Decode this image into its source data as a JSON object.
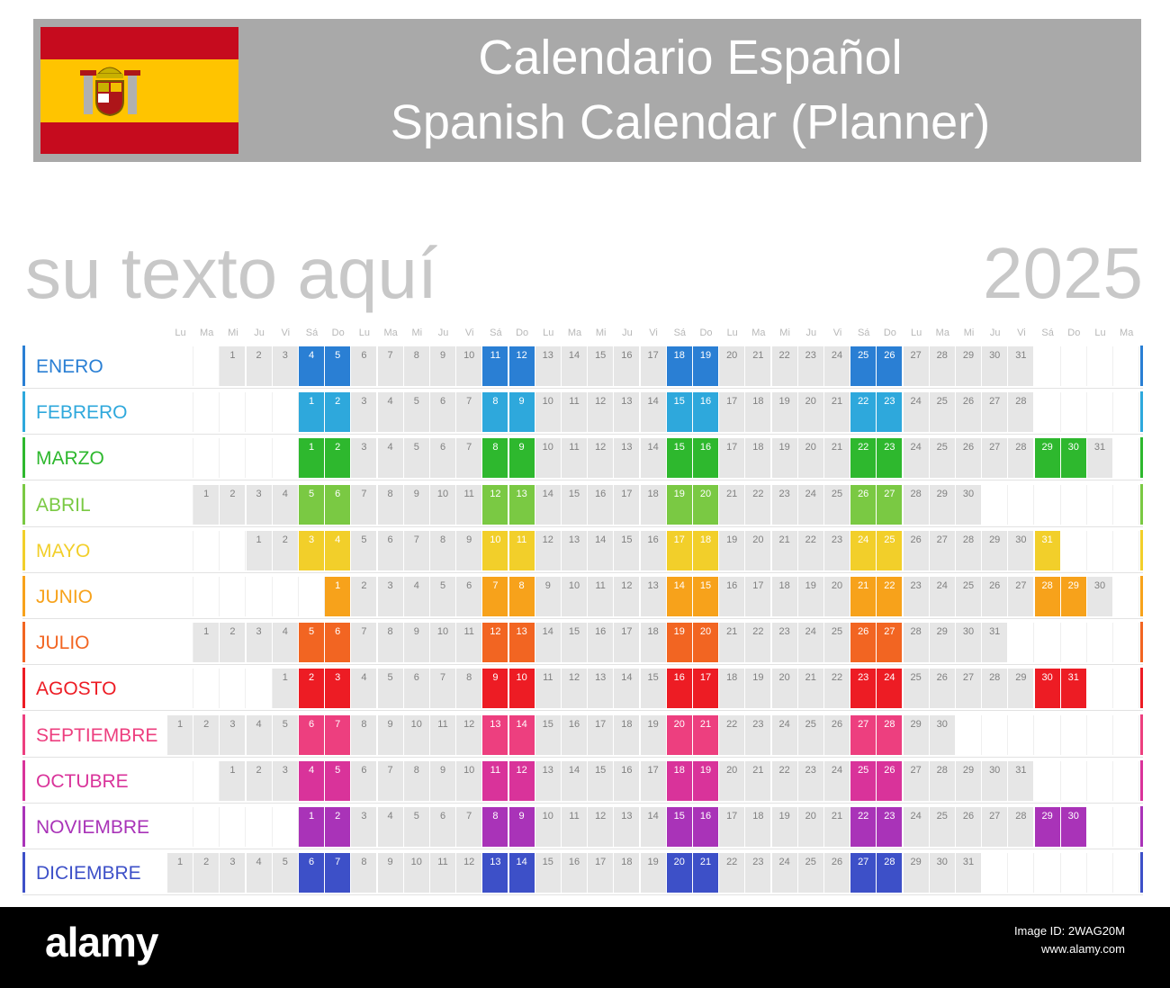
{
  "header": {
    "title_line1": "Calendario Español",
    "title_line2": "Spanish Calendar (Planner)"
  },
  "subtitle": "su texto aquí",
  "year": "2025",
  "colors": {
    "header_bg": "#a9a9a9",
    "weekday_cell": "#e6e6e6"
  },
  "weekday_headers": [
    "Lu",
    "Ma",
    "Mi",
    "Ju",
    "Vi",
    "Sá",
    "Do",
    "Lu",
    "Ma",
    "Mi",
    "Ju",
    "Vi",
    "Sá",
    "Do",
    "Lu",
    "Ma",
    "Mi",
    "Ju",
    "Vi",
    "Sá",
    "Do",
    "Lu",
    "Ma",
    "Mi",
    "Ju",
    "Vi",
    "Sá",
    "Do",
    "Lu",
    "Ma",
    "Mi",
    "Ju",
    "Vi",
    "Sá",
    "Do",
    "Lu",
    "Ma"
  ],
  "months": [
    {
      "name": "ENERO",
      "color": "#2a7fd4",
      "start": 2,
      "days": 31
    },
    {
      "name": "FEBRERO",
      "color": "#2ea8dc",
      "start": 5,
      "days": 28
    },
    {
      "name": "MARZO",
      "color": "#2eb82e",
      "start": 5,
      "days": 31
    },
    {
      "name": "ABRIL",
      "color": "#7ac943",
      "start": 1,
      "days": 30
    },
    {
      "name": "MAYO",
      "color": "#f2cf2a",
      "start": 3,
      "days": 31
    },
    {
      "name": "JUNIO",
      "color": "#f7a21b",
      "start": 6,
      "days": 30
    },
    {
      "name": "JULIO",
      "color": "#f26522",
      "start": 1,
      "days": 31
    },
    {
      "name": "AGOSTO",
      "color": "#ed1c24",
      "start": 4,
      "days": 31
    },
    {
      "name": "SEPTIEMBRE",
      "color": "#ed3f7f",
      "start": 0,
      "days": 30
    },
    {
      "name": "OCTUBRE",
      "color": "#d9339a",
      "start": 2,
      "days": 31
    },
    {
      "name": "NOVIEMBRE",
      "color": "#a933b8",
      "start": 5,
      "days": 30
    },
    {
      "name": "DICIEMBRE",
      "color": "#3d50c8",
      "start": 0,
      "days": 31
    }
  ],
  "watermark": {
    "brand": "alamy",
    "image_id": "Image ID: 2WAG20M",
    "site": "www.alamy.com"
  }
}
